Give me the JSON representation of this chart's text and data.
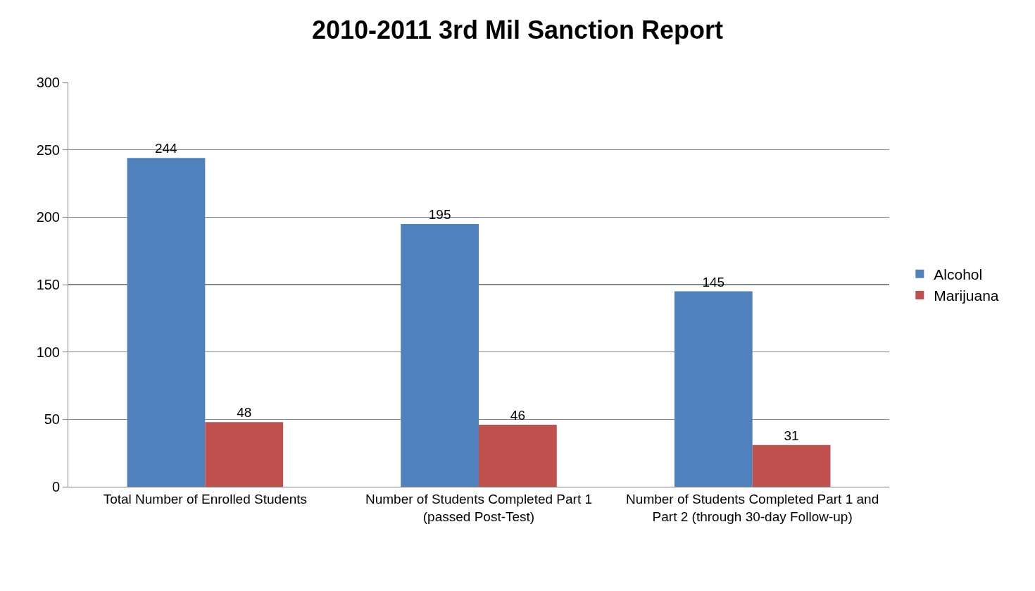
{
  "chart_data": {
    "type": "bar",
    "title": "2010-2011 3rd Mil Sanction Report",
    "categories": [
      "Total Number of Enrolled Students",
      "Number of Students Completed Part 1 (passed Post-Test)",
      "Number of Students Completed Part 1 and Part 2 (through 30-day Follow-up)"
    ],
    "series": [
      {
        "name": "Alcohol",
        "color": "#4f81bd",
        "values": [
          244,
          195,
          145
        ]
      },
      {
        "name": "Marijuana",
        "color": "#c0504d",
        "values": [
          48,
          46,
          31
        ]
      }
    ],
    "ylim": [
      0,
      300
    ],
    "yticks": [
      0,
      50,
      100,
      150,
      200,
      250,
      300
    ],
    "grid": "y",
    "legend": "right",
    "data_labels": true
  }
}
